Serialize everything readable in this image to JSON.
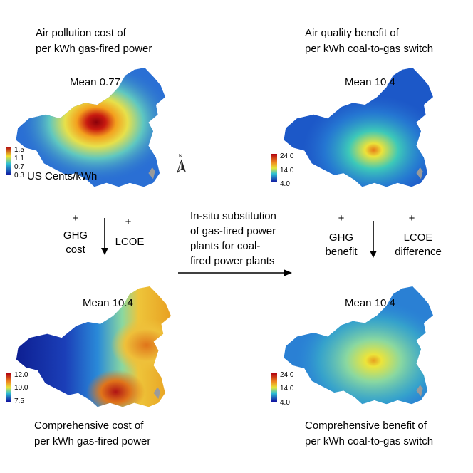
{
  "panels": {
    "top_left": {
      "title_line1": "Air pollution cost of",
      "title_line2": "per kWh gas-fired power",
      "mean": "Mean 0.77",
      "unit": "US Cents/kWh",
      "ticks": [
        "1.5",
        "1.1",
        "0.7",
        "0.3"
      ],
      "north": "N"
    },
    "top_right": {
      "title_line1": "Air quality benefit of",
      "title_line2": "per kWh coal-to-gas switch",
      "mean": "Mean 10.4",
      "ticks": [
        "24.0",
        "14.0",
        "4.0"
      ]
    },
    "bottom_left": {
      "title_line1": "Comprehensive cost of",
      "title_line2": "per kWh gas-fired power",
      "mean": "Mean 10.4",
      "ticks": [
        "12.0",
        "10.0",
        "7.5"
      ]
    },
    "bottom_right": {
      "title_line1": "Comprehensive benefit of",
      "title_line2": "per kWh coal-to-gas switch",
      "mean": "Mean 10.4",
      "ticks": [
        "24.0",
        "14.0",
        "4.0"
      ]
    }
  },
  "flow": {
    "left": {
      "plus1": "+",
      "label1_line1": "GHG",
      "label1_line2": "cost",
      "plus2": "+",
      "label2": "LCOE"
    },
    "center_line1": "In-situ substitution",
    "center_line2": "of gas-fired power",
    "center_line3": "plants for coal-",
    "center_line4": "fired power plants",
    "right": {
      "plus1": "+",
      "label1_line1": "GHG",
      "label1_line2": "benefit",
      "plus2": "+",
      "label2_line1": "LCOE",
      "label2_line2": "difference"
    }
  },
  "colors": {
    "scale_high": "#b00010",
    "scale_mid_high": "#f4e22a",
    "scale_mid": "#2cc0d4",
    "scale_low": "#1010a0",
    "taiwan": "#9a9a9a"
  }
}
